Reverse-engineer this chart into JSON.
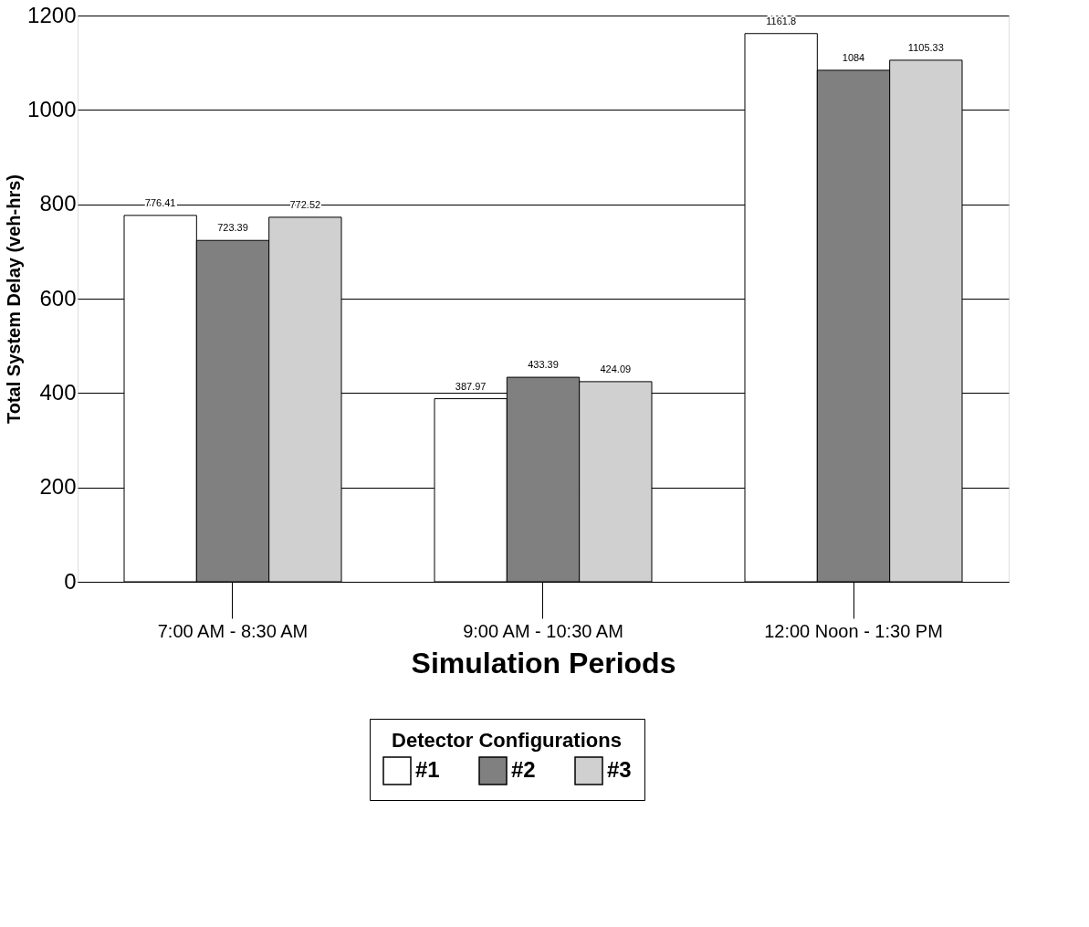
{
  "chart_data": {
    "type": "bar",
    "xlabel": "Simulation Periods",
    "ylabel": "Total System Delay (veh-hrs)",
    "legend_title": "Detector Configurations",
    "categories": [
      "7:00 AM - 8:30 AM",
      "9:00 AM - 10:30  AM",
      "12:00 Noon - 1:30 PM"
    ],
    "series": [
      {
        "name": "#1",
        "color": "#ffffff",
        "values": [
          776.41,
          387.97,
          1161.8
        ]
      },
      {
        "name": "#2",
        "color": "#808080",
        "values": [
          723.39,
          433.39,
          1084
        ]
      },
      {
        "name": "#3",
        "color": "#d0d0d0",
        "values": [
          772.52,
          424.09,
          1105.33
        ]
      }
    ],
    "ylim": [
      0,
      1200
    ],
    "yticks": [
      0,
      200,
      400,
      600,
      800,
      1000,
      1200
    ],
    "grid": "y",
    "legend": "bottom",
    "data_labels": true
  }
}
